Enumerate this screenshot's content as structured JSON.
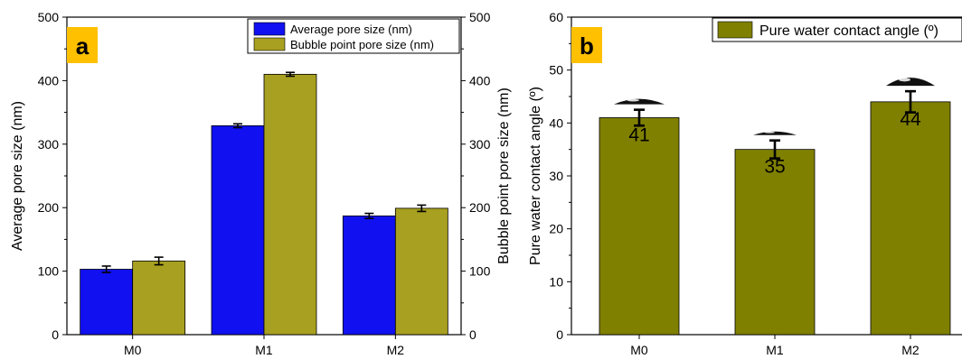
{
  "chart_data": [
    {
      "type": "bar",
      "panel_label": "a",
      "categories": [
        "M0",
        "M1",
        "M2"
      ],
      "ylabel": "Average pore size (nm)",
      "y2label": "Bubble point pore size  (nm)",
      "ylim": [
        0,
        500
      ],
      "y2lim": [
        0,
        500
      ],
      "yticks": [
        "0",
        "100",
        "200",
        "300",
        "400",
        "500"
      ],
      "y2ticks": [
        "0",
        "100",
        "200",
        "300",
        "400",
        "500"
      ],
      "legend_position": "top-right",
      "series": [
        {
          "name": "Average pore size (nm)",
          "color": "#1010f0",
          "values": [
            103,
            329,
            187
          ],
          "errors": [
            5,
            3,
            4
          ]
        },
        {
          "name": "Bubble point pore size  (nm)",
          "color": "#a8a020",
          "values": [
            116,
            410,
            199
          ],
          "errors": [
            6,
            3,
            5
          ]
        }
      ]
    },
    {
      "type": "bar",
      "panel_label": "b",
      "categories": [
        "M0",
        "M1",
        "M2"
      ],
      "ylabel": "Pure water contact angle (º)",
      "ylim": [
        0,
        60
      ],
      "yticks": [
        "0",
        "10",
        "20",
        "30",
        "40",
        "50",
        "60"
      ],
      "legend_position": "top-right",
      "series": [
        {
          "name": "Pure water contact angle (º)",
          "color": "#808000",
          "values": [
            41,
            35,
            44
          ],
          "errors": [
            1.5,
            1.7,
            2.0
          ],
          "data_labels": [
            "41",
            "35",
            "44"
          ]
        }
      ]
    }
  ]
}
